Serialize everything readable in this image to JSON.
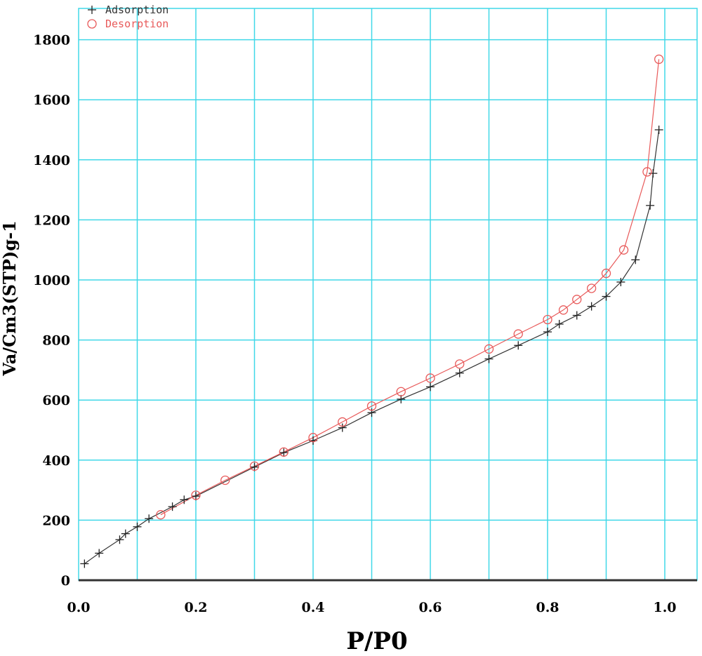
{
  "chart_data": {
    "type": "scatter",
    "title": "",
    "xlabel": "P/P0",
    "ylabel": "Va/Cm3(STP)g-1",
    "xlim": [
      0.0,
      1.05
    ],
    "ylim": [
      0,
      1800
    ],
    "xticks": [
      "0.0",
      "0.2",
      "0.4",
      "0.6",
      "0.8",
      "1.0"
    ],
    "yticks": [
      "0",
      "200",
      "400",
      "600",
      "800",
      "1000",
      "1200",
      "1400",
      "1600",
      "1800"
    ],
    "grid": true,
    "grid_color": "#40d8e8",
    "legend_position": "top-left",
    "series": [
      {
        "name": "Adsorption",
        "marker": "plus",
        "color": "#222222",
        "line_color": "#333333",
        "x": [
          0.01,
          0.035,
          0.07,
          0.08,
          0.1,
          0.12,
          0.16,
          0.18,
          0.2,
          0.3,
          0.35,
          0.4,
          0.45,
          0.5,
          0.55,
          0.6,
          0.65,
          0.7,
          0.75,
          0.8,
          0.82,
          0.85,
          0.875,
          0.9,
          0.925,
          0.95,
          0.975,
          0.98,
          0.99
        ],
        "y": [
          55,
          90,
          135,
          155,
          178,
          205,
          245,
          268,
          280,
          377,
          425,
          465,
          508,
          558,
          603,
          644,
          690,
          737,
          782,
          827,
          853,
          882,
          912,
          945,
          993,
          1067,
          1248,
          1355,
          1500
        ]
      },
      {
        "name": "Desorption",
        "marker": "circle",
        "color": "#e85a5a",
        "line_color": "#e85a5a",
        "x": [
          0.99,
          0.97,
          0.93,
          0.9,
          0.875,
          0.85,
          0.827,
          0.8,
          0.75,
          0.7,
          0.65,
          0.6,
          0.55,
          0.5,
          0.45,
          0.4,
          0.35,
          0.3,
          0.25,
          0.2,
          0.14
        ],
        "y": [
          1735,
          1360,
          1100,
          1022,
          972,
          935,
          900,
          868,
          820,
          770,
          720,
          673,
          628,
          580,
          527,
          475,
          427,
          380,
          333,
          283,
          218
        ]
      }
    ]
  }
}
